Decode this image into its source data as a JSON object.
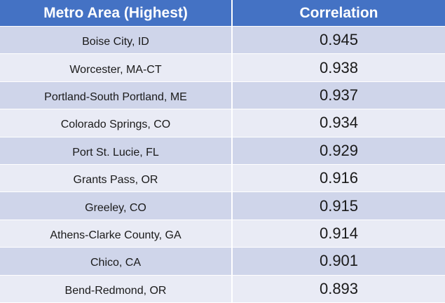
{
  "table": {
    "headers": {
      "metro": "Metro Area (Highest)",
      "correlation": "Correlation"
    },
    "rows": [
      {
        "metro": "Boise City, ID",
        "correlation": "0.945"
      },
      {
        "metro": "Worcester, MA-CT",
        "correlation": "0.938"
      },
      {
        "metro": "Portland-South Portland, ME",
        "correlation": "0.937"
      },
      {
        "metro": "Colorado Springs, CO",
        "correlation": "0.934"
      },
      {
        "metro": "Port St. Lucie, FL",
        "correlation": "0.929"
      },
      {
        "metro": "Grants Pass, OR",
        "correlation": "0.916"
      },
      {
        "metro": "Greeley, CO",
        "correlation": "0.915"
      },
      {
        "metro": "Athens-Clarke County, GA",
        "correlation": "0.914"
      },
      {
        "metro": "Chico, CA",
        "correlation": "0.901"
      },
      {
        "metro": "Bend-Redmond, OR",
        "correlation": "0.893"
      }
    ]
  },
  "colors": {
    "header_bg": "#4472c4",
    "row_odd_bg": "#cfd5ea",
    "row_even_bg": "#e9ebf5"
  }
}
